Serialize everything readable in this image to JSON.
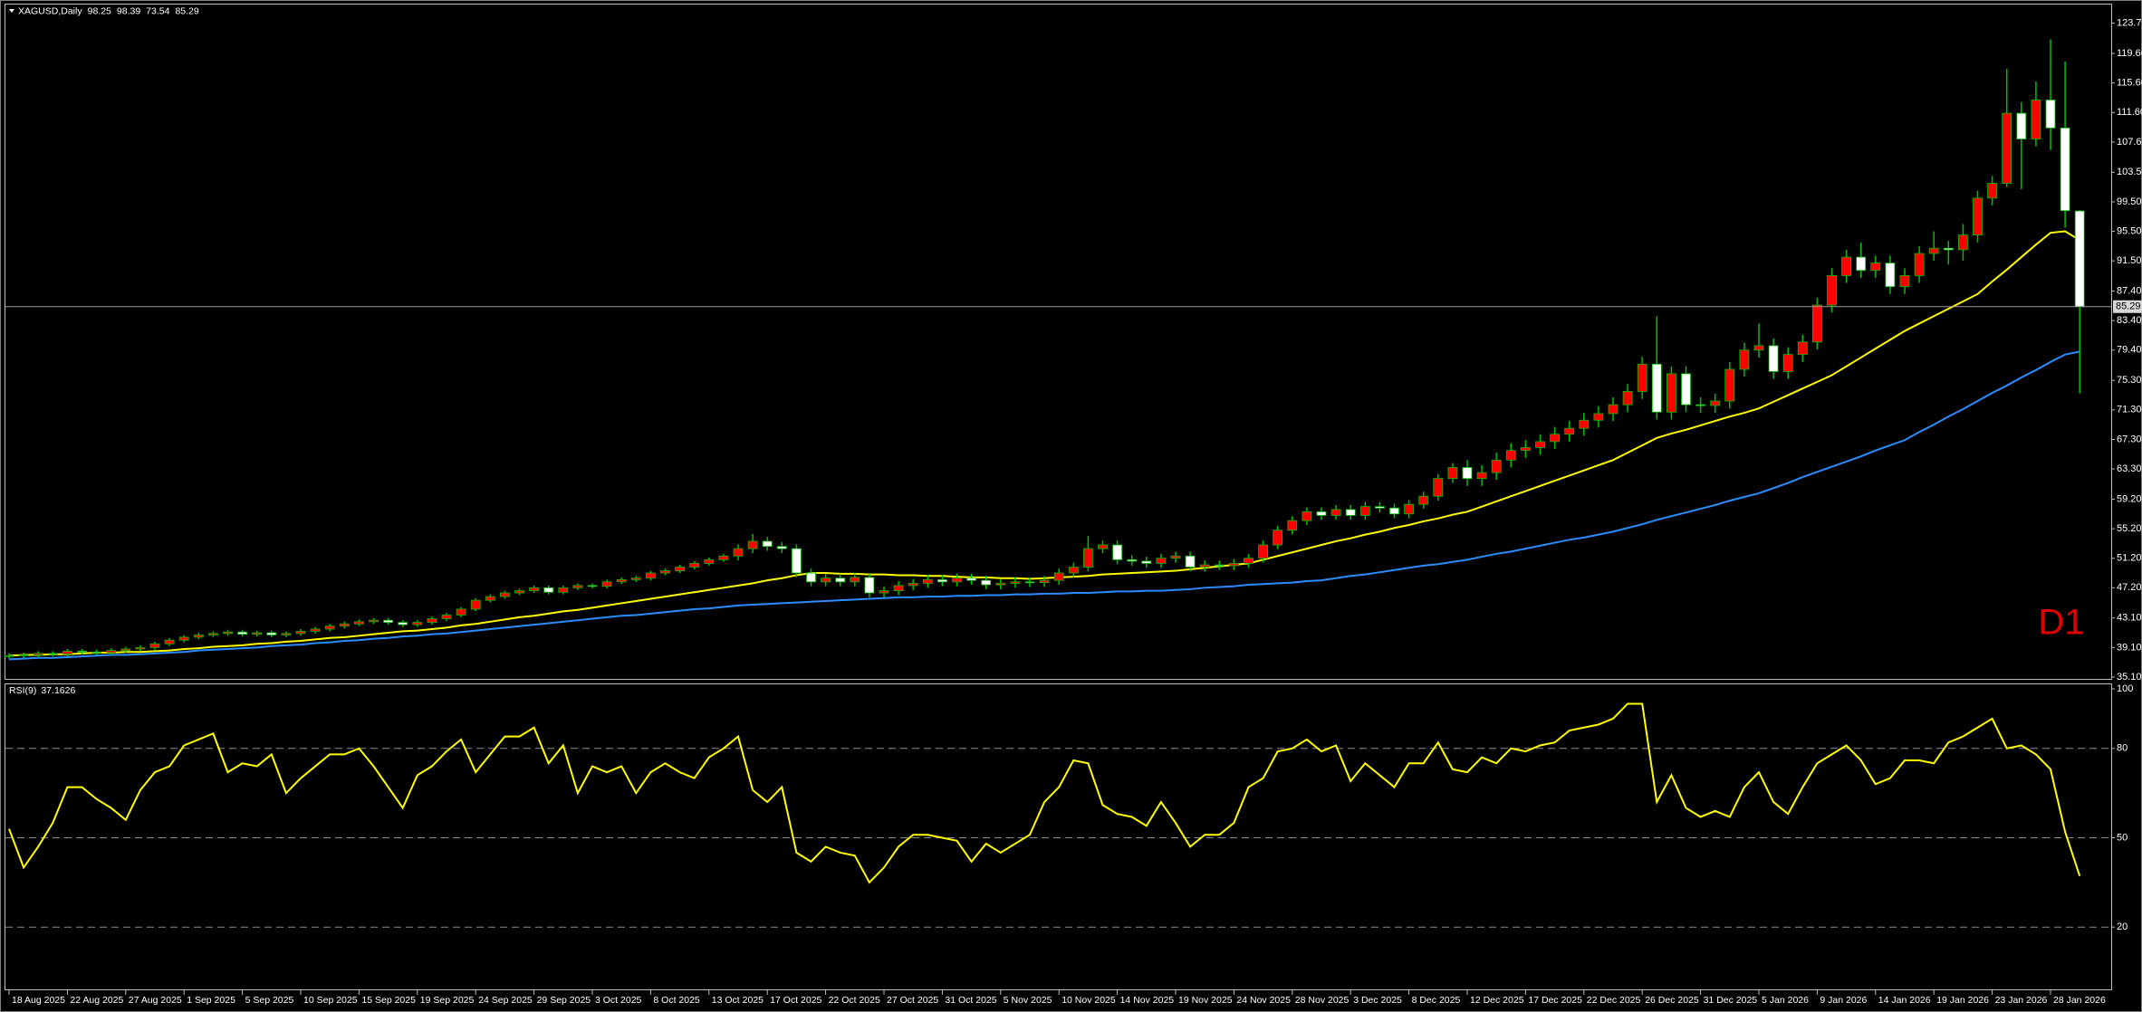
{
  "chart_data": [
    {
      "type": "candlestick",
      "title": "XAGUSD,Daily",
      "annotation": "D1",
      "annotation_color": "#e00000",
      "up_color": "#ff0000",
      "down_color": "#ffffff",
      "wick_color": "#00c000",
      "grid": false,
      "last_price_line": true,
      "categories": [
        "18 Aug 2025",
        null,
        null,
        null,
        "22 Aug 2025",
        null,
        null,
        null,
        "27 Aug 2025",
        null,
        null,
        null,
        "1 Sep 2025",
        null,
        null,
        null,
        "5 Sep 2025",
        null,
        null,
        null,
        "10 Sep 2025",
        null,
        null,
        null,
        "15 Sep 2025",
        null,
        null,
        null,
        "19 Sep 2025",
        null,
        null,
        null,
        "24 Sep 2025",
        null,
        null,
        null,
        "29 Sep 2025",
        null,
        null,
        null,
        "3 Oct 2025",
        null,
        null,
        null,
        "8 Oct 2025",
        null,
        null,
        null,
        "13 Oct 2025",
        null,
        null,
        null,
        "17 Oct 2025",
        null,
        null,
        null,
        "22 Oct 2025",
        null,
        null,
        null,
        "27 Oct 2025",
        null,
        null,
        null,
        "31 Oct 2025",
        null,
        null,
        null,
        "5 Nov 2025",
        null,
        null,
        null,
        "10 Nov 2025",
        null,
        null,
        null,
        "14 Nov 2025",
        null,
        null,
        null,
        "19 Nov 2025",
        null,
        null,
        null,
        "24 Nov 2025",
        null,
        null,
        null,
        "28 Nov 2025",
        null,
        null,
        null,
        "3 Dec 2025",
        null,
        null,
        null,
        "8 Dec 2025",
        null,
        null,
        null,
        "12 Dec 2025",
        null,
        null,
        null,
        "17 Dec 2025",
        null,
        null,
        null,
        "22 Dec 2025",
        null,
        null,
        null,
        "26 Dec 2025",
        null,
        null,
        null,
        "31 Dec 2025",
        null,
        null,
        null,
        "5 Jan 2026",
        null,
        null,
        null,
        "9 Jan 2026",
        null,
        null,
        null,
        "14 Jan 2026",
        null,
        null,
        null,
        "19 Jan 2026",
        null,
        null,
        null,
        "23 Jan 2026",
        null,
        null,
        null,
        "28 Jan 2026",
        null,
        null
      ],
      "open": [
        37.9,
        38.0,
        38.1,
        38.3,
        38.2,
        38.6,
        38.5,
        38.4,
        38.7,
        38.9,
        39.1,
        39.6,
        40.1,
        40.5,
        40.8,
        41.0,
        41.2,
        40.9,
        41.1,
        40.8,
        41.0,
        41.3,
        41.6,
        42.0,
        42.3,
        42.6,
        42.8,
        42.5,
        42.2,
        42.5,
        43.0,
        43.5,
        44.3,
        45.5,
        46.0,
        46.5,
        46.8,
        47.2,
        46.6,
        47.2,
        47.5,
        47.4,
        48.0,
        48.3,
        48.5,
        49.2,
        49.5,
        50.0,
        50.5,
        51.0,
        51.5,
        52.5,
        53.5,
        52.8,
        52.5,
        49.2,
        48.0,
        48.5,
        48.0,
        48.6,
        46.5,
        46.8,
        47.5,
        47.8,
        48.3,
        48.0,
        48.5,
        48.2,
        47.6,
        47.8,
        48.0,
        47.9,
        48.2,
        49.2,
        50.0,
        52.5,
        53.0,
        51.0,
        50.8,
        50.5,
        51.2,
        51.5,
        50.0,
        50.3,
        50.2,
        50.5,
        51.2,
        53.0,
        55.0,
        56.3,
        57.5,
        57.0,
        57.8,
        57.0,
        58.2,
        58.0,
        57.2,
        58.5,
        59.6,
        62.0,
        63.5,
        62.0,
        62.8,
        64.5,
        65.8,
        66.2,
        67.0,
        68.0,
        68.8,
        69.9,
        70.8,
        72.0,
        73.8,
        77.5,
        71.0,
        76.2,
        72.0,
        71.9,
        72.5,
        76.8,
        79.4,
        80.0,
        76.5,
        78.8,
        80.5,
        85.5,
        89.5,
        92.0,
        90.2,
        91.2,
        88.0,
        89.5,
        92.5,
        93.2,
        93.0,
        95.0,
        100.0,
        102.0,
        111.5,
        108.0,
        113.3,
        109.5,
        98.25
      ],
      "high": [
        38.3,
        38.4,
        38.6,
        38.6,
        38.9,
        38.9,
        38.8,
        39.0,
        39.2,
        39.4,
        39.9,
        40.4,
        40.8,
        41.1,
        41.3,
        41.5,
        41.5,
        41.4,
        41.4,
        41.3,
        41.6,
        41.9,
        42.3,
        42.6,
        42.9,
        43.1,
        43.1,
        42.8,
        42.8,
        43.3,
        43.8,
        44.6,
        45.8,
        46.3,
        46.8,
        47.1,
        47.5,
        47.5,
        47.5,
        47.8,
        47.8,
        48.3,
        48.6,
        48.8,
        49.5,
        49.8,
        50.3,
        50.8,
        51.3,
        51.8,
        53.1,
        54.5,
        54.1,
        53.4,
        53.1,
        49.8,
        49.1,
        49.1,
        49.2,
        49.2,
        47.4,
        48.1,
        48.4,
        48.9,
        48.9,
        49.1,
        49.1,
        48.8,
        48.4,
        48.6,
        48.6,
        48.8,
        49.8,
        50.6,
        54.2,
        53.6,
        53.6,
        51.6,
        51.4,
        51.8,
        52.1,
        52.1,
        50.9,
        50.9,
        51.1,
        51.8,
        53.6,
        55.6,
        56.9,
        58.1,
        58.1,
        58.4,
        58.4,
        58.8,
        58.8,
        58.6,
        59.1,
        60.2,
        62.6,
        64.1,
        64.5,
        63.8,
        65.5,
        66.8,
        67.2,
        68.0,
        69.0,
        69.8,
        70.9,
        71.8,
        73.0,
        74.8,
        78.5,
        84.0,
        77.2,
        77.2,
        73.0,
        73.5,
        77.8,
        80.4,
        83.0,
        81.0,
        79.8,
        81.5,
        86.5,
        90.5,
        93.0,
        94.0,
        92.2,
        92.2,
        90.5,
        93.5,
        95.5,
        94.2,
        96.5,
        101.0,
        103.0,
        117.5,
        113.0,
        115.8,
        121.5,
        118.5,
        98.39
      ],
      "low": [
        37.6,
        37.7,
        37.8,
        37.9,
        37.9,
        38.2,
        38.1,
        38.1,
        38.4,
        38.6,
        38.8,
        39.3,
        39.8,
        40.2,
        40.5,
        40.7,
        40.6,
        40.6,
        40.5,
        40.5,
        40.7,
        41.0,
        41.3,
        41.7,
        42.0,
        42.3,
        42.2,
        41.9,
        41.9,
        42.2,
        42.7,
        43.2,
        44.0,
        45.2,
        45.7,
        46.2,
        46.5,
        46.3,
        46.3,
        46.9,
        47.1,
        47.1,
        47.7,
        48.0,
        48.2,
        48.9,
        49.2,
        49.7,
        50.2,
        50.7,
        50.9,
        51.9,
        52.2,
        51.9,
        48.6,
        47.4,
        47.4,
        47.4,
        47.4,
        45.9,
        45.9,
        46.2,
        46.9,
        47.2,
        47.4,
        47.4,
        47.6,
        47.0,
        47.0,
        47.2,
        47.3,
        47.3,
        47.6,
        48.6,
        49.4,
        51.9,
        50.4,
        50.2,
        49.9,
        49.9,
        50.6,
        49.4,
        49.4,
        49.6,
        49.6,
        49.9,
        50.6,
        52.4,
        54.4,
        55.7,
        56.4,
        56.4,
        56.4,
        56.4,
        57.4,
        56.6,
        56.6,
        57.9,
        59.0,
        61.4,
        61.0,
        61.0,
        61.8,
        63.5,
        64.8,
        65.2,
        66.0,
        67.0,
        67.8,
        68.9,
        69.8,
        71.0,
        72.8,
        70.0,
        70.0,
        71.0,
        70.9,
        70.9,
        71.5,
        75.8,
        78.4,
        75.5,
        75.5,
        77.8,
        79.5,
        84.5,
        88.5,
        89.2,
        89.2,
        87.0,
        87.0,
        88.5,
        91.5,
        91.0,
        91.5,
        94.0,
        99.0,
        101.5,
        101.2,
        107.0,
        106.5,
        96.0,
        73.54
      ],
      "close": [
        38.0,
        38.1,
        38.3,
        38.2,
        38.6,
        38.5,
        38.4,
        38.7,
        38.9,
        39.1,
        39.6,
        40.1,
        40.5,
        40.8,
        41.0,
        41.2,
        40.9,
        41.1,
        40.8,
        41.0,
        41.3,
        41.6,
        42.0,
        42.3,
        42.6,
        42.8,
        42.5,
        42.2,
        42.5,
        43.0,
        43.5,
        44.3,
        45.5,
        46.0,
        46.5,
        46.8,
        47.2,
        46.6,
        47.2,
        47.5,
        47.4,
        48.0,
        48.3,
        48.5,
        49.2,
        49.5,
        50.0,
        50.5,
        51.0,
        51.5,
        52.5,
        53.5,
        52.8,
        52.5,
        49.2,
        48.0,
        48.5,
        48.0,
        48.6,
        46.5,
        46.8,
        47.5,
        47.8,
        48.3,
        48.0,
        48.5,
        48.2,
        47.6,
        47.8,
        48.0,
        47.9,
        48.2,
        49.2,
        50.0,
        52.5,
        53.0,
        51.0,
        50.8,
        50.5,
        51.2,
        51.5,
        50.0,
        50.3,
        50.2,
        50.5,
        51.2,
        53.0,
        55.0,
        56.3,
        57.5,
        57.0,
        57.8,
        57.0,
        58.2,
        58.0,
        57.2,
        58.5,
        59.6,
        62.0,
        63.5,
        62.0,
        62.8,
        64.5,
        65.8,
        66.2,
        67.0,
        68.0,
        68.8,
        69.9,
        70.8,
        72.0,
        73.8,
        77.5,
        71.0,
        76.2,
        72.0,
        71.9,
        72.5,
        76.8,
        79.4,
        80.0,
        76.5,
        78.8,
        80.5,
        85.5,
        89.5,
        92.0,
        90.2,
        91.2,
        88.0,
        89.5,
        92.5,
        93.2,
        93.0,
        95.0,
        100.0,
        102.0,
        111.5,
        108.0,
        113.3,
        109.5,
        98.3,
        85.29
      ],
      "series": [
        {
          "color": "#ffff00",
          "values": [
            38.0,
            38.1,
            38.1,
            38.2,
            38.2,
            38.3,
            38.4,
            38.4,
            38.5,
            38.5,
            38.6,
            38.7,
            38.9,
            39.0,
            39.2,
            39.3,
            39.4,
            39.6,
            39.7,
            39.9,
            40.0,
            40.2,
            40.4,
            40.5,
            40.7,
            40.9,
            41.1,
            41.3,
            41.4,
            41.6,
            41.8,
            42.1,
            42.3,
            42.6,
            42.9,
            43.2,
            43.4,
            43.7,
            44.0,
            44.2,
            44.5,
            44.8,
            45.1,
            45.4,
            45.7,
            46.0,
            46.3,
            46.6,
            46.9,
            47.2,
            47.5,
            47.8,
            48.2,
            48.5,
            48.9,
            49.2,
            49.2,
            49.1,
            49.1,
            49.0,
            49.0,
            48.9,
            48.9,
            48.8,
            48.8,
            48.7,
            48.6,
            48.6,
            48.5,
            48.5,
            48.4,
            48.5,
            48.6,
            48.7,
            48.8,
            49.0,
            49.1,
            49.2,
            49.3,
            49.4,
            49.5,
            49.7,
            49.9,
            50.1,
            50.3,
            50.5,
            51.0,
            51.5,
            52.0,
            52.5,
            53.0,
            53.5,
            53.9,
            54.4,
            54.8,
            55.3,
            55.7,
            56.2,
            56.6,
            57.1,
            57.5,
            58.2,
            58.9,
            59.6,
            60.3,
            61.0,
            61.7,
            62.4,
            63.1,
            63.8,
            64.5,
            65.5,
            66.5,
            67.5,
            68.1,
            68.6,
            69.2,
            69.8,
            70.4,
            70.9,
            71.5,
            72.4,
            73.3,
            74.2,
            75.1,
            76.0,
            77.2,
            78.4,
            79.6,
            80.8,
            82.0,
            83.0,
            84.0,
            85.0,
            86.0,
            87.0,
            88.7,
            90.3,
            92.0,
            93.7,
            95.3,
            95.5,
            94.3
          ]
        },
        {
          "color": "#2a8cff",
          "values": [
            37.5,
            37.6,
            37.7,
            37.7,
            37.8,
            37.9,
            38.0,
            38.1,
            38.1,
            38.2,
            38.3,
            38.4,
            38.5,
            38.7,
            38.8,
            38.9,
            39.0,
            39.1,
            39.3,
            39.4,
            39.5,
            39.7,
            39.8,
            40.0,
            40.1,
            40.3,
            40.4,
            40.6,
            40.7,
            40.9,
            41.0,
            41.2,
            41.4,
            41.6,
            41.8,
            42.0,
            42.2,
            42.4,
            42.6,
            42.8,
            43.0,
            43.2,
            43.4,
            43.5,
            43.7,
            43.9,
            44.1,
            44.3,
            44.4,
            44.6,
            44.8,
            44.9,
            45.0,
            45.1,
            45.2,
            45.3,
            45.4,
            45.5,
            45.6,
            45.7,
            45.8,
            45.9,
            45.9,
            46.0,
            46.0,
            46.1,
            46.1,
            46.2,
            46.2,
            46.3,
            46.3,
            46.4,
            46.4,
            46.5,
            46.5,
            46.6,
            46.7,
            46.7,
            46.8,
            46.8,
            46.9,
            47.0,
            47.2,
            47.3,
            47.4,
            47.6,
            47.7,
            47.8,
            47.9,
            48.1,
            48.2,
            48.5,
            48.8,
            49.0,
            49.3,
            49.6,
            49.9,
            50.2,
            50.4,
            50.7,
            51.0,
            51.4,
            51.8,
            52.1,
            52.5,
            52.9,
            53.3,
            53.7,
            54.0,
            54.4,
            54.8,
            55.3,
            55.8,
            56.4,
            56.9,
            57.4,
            57.9,
            58.4,
            59.0,
            59.5,
            60.0,
            60.7,
            61.4,
            62.2,
            62.9,
            63.6,
            64.3,
            65.0,
            65.8,
            66.5,
            67.2,
            68.3,
            69.3,
            70.4,
            71.4,
            72.5,
            73.6,
            74.6,
            75.7,
            76.7,
            77.8,
            78.8,
            79.2
          ]
        }
      ],
      "ylim": [
        34.85,
        126.23
      ],
      "yticks": [
        {
          "value": 35.1,
          "label": "35.10"
        },
        {
          "value": 39.1,
          "label": "39.10"
        },
        {
          "value": 43.1,
          "label": "43.10"
        },
        {
          "value": 47.2,
          "label": "47.20"
        },
        {
          "value": 51.2,
          "label": "51.20"
        },
        {
          "value": 55.2,
          "label": "55.20"
        },
        {
          "value": 59.2,
          "label": "59.20"
        },
        {
          "value": 63.3,
          "label": "63.30"
        },
        {
          "value": 67.3,
          "label": "67.30"
        },
        {
          "value": 71.3,
          "label": "71.30"
        },
        {
          "value": 75.3,
          "label": "75.30"
        },
        {
          "value": 79.4,
          "label": "79.40"
        },
        {
          "value": 83.4,
          "label": "83.40"
        },
        {
          "value": 87.4,
          "label": "87.40"
        },
        {
          "value": 91.5,
          "label": "91.50"
        },
        {
          "value": 95.5,
          "label": "95.50"
        },
        {
          "value": 99.5,
          "label": "99.50"
        },
        {
          "value": 103.5,
          "label": "103.50"
        },
        {
          "value": 107.6,
          "label": "107.60"
        },
        {
          "value": 111.6,
          "label": "111.60"
        },
        {
          "value": 115.6,
          "label": "115.60"
        },
        {
          "value": 119.6,
          "label": "119.60"
        },
        {
          "value": 123.7,
          "label": "123.70"
        }
      ]
    },
    {
      "type": "line",
      "title": "RSI(9)",
      "color": "#ffff00",
      "grid": true,
      "values": [
        53,
        40,
        47,
        55,
        67,
        67,
        63,
        60,
        56,
        66,
        72,
        74,
        81,
        83,
        85,
        72,
        75,
        74,
        78,
        65,
        70,
        74,
        78,
        78,
        80,
        74,
        67,
        60,
        71,
        74,
        79,
        83,
        72,
        78,
        84,
        84,
        87,
        75,
        81,
        65,
        74,
        72,
        74,
        65,
        72,
        75,
        72,
        70,
        77,
        80,
        84,
        66,
        62,
        67,
        45,
        42,
        47,
        45,
        44,
        35,
        40,
        47,
        51,
        51,
        50,
        49,
        42,
        48,
        45,
        48,
        51,
        62,
        67,
        76,
        75,
        61,
        58,
        57,
        54,
        62,
        55,
        47,
        51,
        51,
        55,
        67,
        70,
        79,
        80,
        83,
        79,
        81,
        69,
        75,
        71,
        67,
        75,
        75,
        82,
        73,
        72,
        77,
        75,
        80,
        79,
        81,
        82,
        86,
        87,
        88,
        90,
        95,
        95,
        62,
        71,
        60,
        57,
        59,
        57,
        67,
        72,
        62,
        58,
        67,
        75,
        78,
        81,
        76,
        68,
        70,
        76,
        76,
        75,
        82,
        84,
        87,
        90,
        80,
        81,
        78,
        73,
        52,
        37.1626
      ],
      "ylim": [
        0,
        100
      ],
      "yticks": [
        20,
        50,
        80,
        100
      ]
    }
  ]
}
